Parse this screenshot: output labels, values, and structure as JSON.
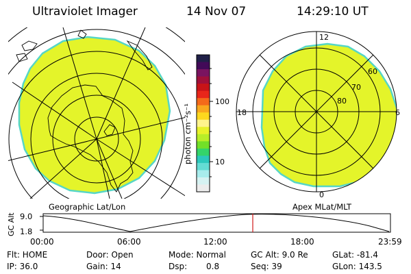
{
  "header": {
    "instrument": "Ultraviolet Imager",
    "date": "14 Nov 07",
    "time": "14:29:10 UT"
  },
  "colors": {
    "image_fill": "#e4f42a",
    "image_edge": "#56d6c6",
    "grid": "#000000",
    "marker": "#d01818"
  },
  "left_panel": {
    "label": "Geographic Lat/Lon"
  },
  "right_panel": {
    "label": "Apex MLat/MLT",
    "mlt_labels": {
      "top": "12",
      "left": "18",
      "right": "6",
      "bottom": "0"
    },
    "lat_labels": [
      "60",
      "70",
      "80"
    ]
  },
  "colorbar": {
    "unit": "photon cm⁻²s⁻¹",
    "ticks": [
      "100",
      "10"
    ],
    "colors": [
      "#202048",
      "#420a58",
      "#7a1460",
      "#a0103a",
      "#c81418",
      "#e8261a",
      "#f46a1a",
      "#f9a81e",
      "#fdd81e",
      "#fff48c",
      "#e8f22a",
      "#b8ee28",
      "#72e028",
      "#34d46a",
      "#2cc8bc",
      "#64dcd4",
      "#a8ecec",
      "#d6f2f2",
      "#ececec"
    ]
  },
  "altitude_plot": {
    "ylabel": "GC Alt",
    "y_ticks": [
      "9.0",
      "1.8"
    ],
    "x_ticks": [
      "00:00",
      "06:00",
      "12:00",
      "18:00",
      "23:59"
    ],
    "current_time_hours": 14.486
  },
  "status": {
    "flt": "Flt: HOME",
    "ip": "IP: 36.0",
    "door": "Door: Open",
    "gain": "Gain: 14",
    "mode": "Mode: Normal",
    "dsp_label": "Dsp:",
    "dsp_value": "0.8",
    "gc_alt": "GC Alt: 9.0 Re",
    "seq": "Seq: 39",
    "glat": "GLat: -81.4",
    "glon": "GLon: 143.5"
  }
}
